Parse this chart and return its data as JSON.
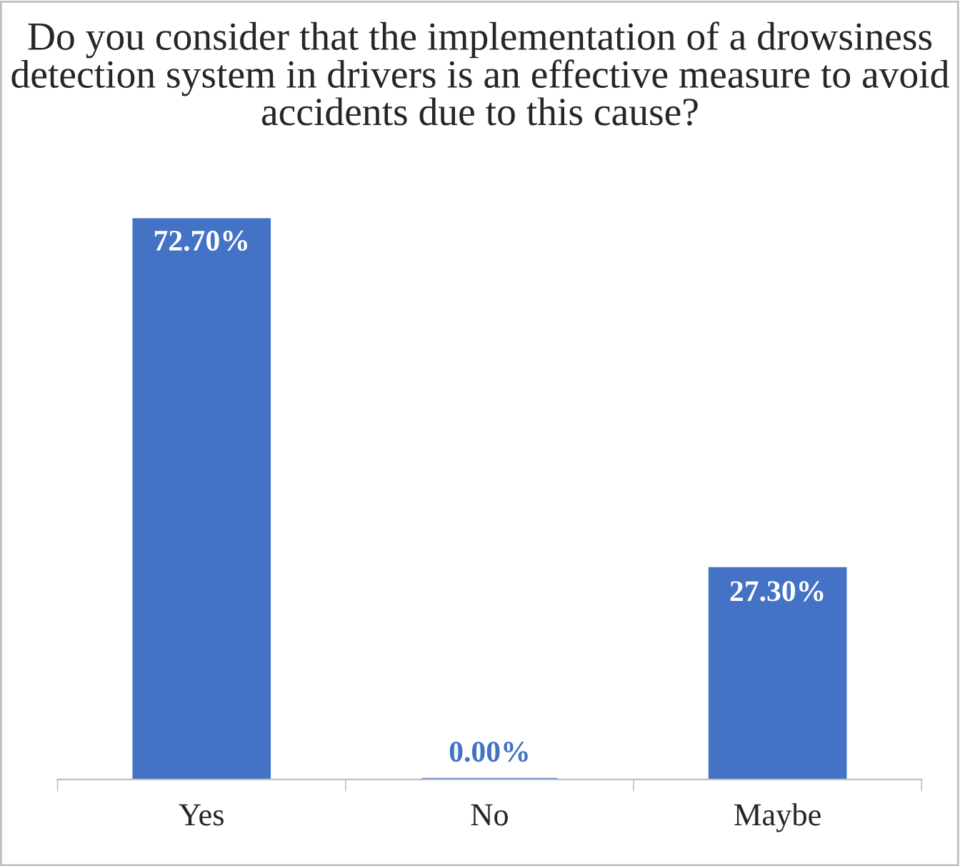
{
  "chart_data": {
    "type": "bar",
    "title": "Do you consider that the implementation of a drowsiness detection system in drivers is an effective measure to avoid accidents due to this cause?",
    "categories": [
      "Yes",
      "No",
      "Maybe"
    ],
    "values": [
      72.7,
      0.0,
      27.3
    ],
    "value_labels": [
      "72.70%",
      "0.00%",
      "27.30%"
    ],
    "color": "#4472c4",
    "grid": false,
    "legend": false
  }
}
